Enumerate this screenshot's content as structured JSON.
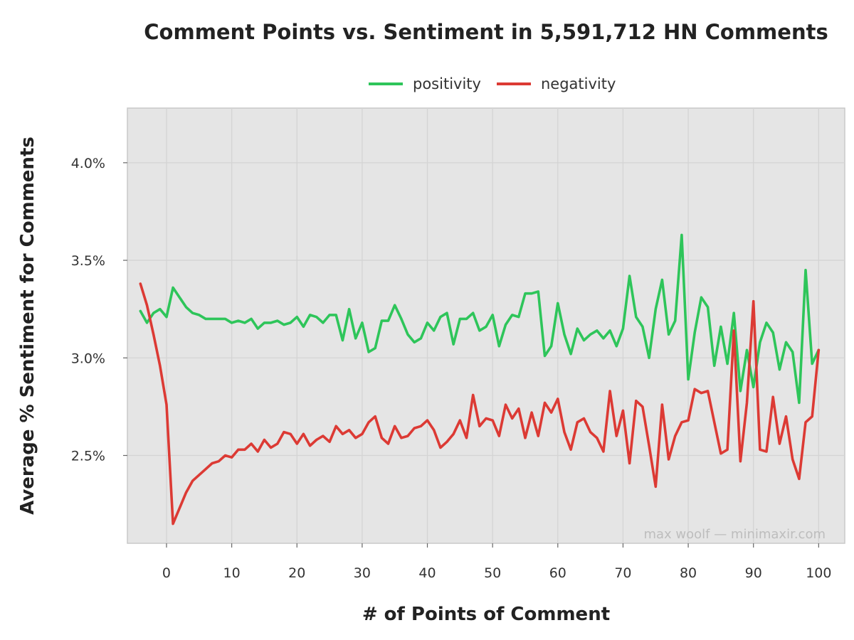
{
  "colors": {
    "positivity": "#2ec55a",
    "negativity": "#dc3a34",
    "panel_background": "#e5e5e5",
    "grid": "#d4d4d4"
  },
  "watermark": "max woolf — minimaxir.com",
  "chart_data": {
    "type": "line",
    "title": "Comment Points vs. Sentiment in 5,591,712 HN Comments",
    "xlabel": "# of Points of Comment",
    "ylabel": "Average % Sentiment for Comments",
    "xlim": [
      -6,
      104
    ],
    "ylim": [
      2.05,
      4.28
    ],
    "x_ticks": [
      0,
      10,
      20,
      30,
      40,
      50,
      60,
      70,
      80,
      90,
      100
    ],
    "x_tick_labels": [
      "0",
      "10",
      "20",
      "30",
      "40",
      "50",
      "60",
      "70",
      "80",
      "90",
      "100"
    ],
    "y_ticks": [
      2.5,
      3.0,
      3.5,
      4.0
    ],
    "y_tick_labels": [
      "2.5%",
      "3.0%",
      "3.5%",
      "4.0%"
    ],
    "grid": true,
    "legend_position": "top",
    "x": [
      -4,
      -3,
      -2,
      -1,
      0,
      1,
      2,
      3,
      4,
      5,
      6,
      7,
      8,
      9,
      10,
      11,
      12,
      13,
      14,
      15,
      16,
      17,
      18,
      19,
      20,
      21,
      22,
      23,
      24,
      25,
      26,
      27,
      28,
      29,
      30,
      31,
      32,
      33,
      34,
      35,
      36,
      37,
      38,
      39,
      40,
      41,
      42,
      43,
      44,
      45,
      46,
      47,
      48,
      49,
      50,
      51,
      52,
      53,
      54,
      55,
      56,
      57,
      58,
      59,
      60,
      61,
      62,
      63,
      64,
      65,
      66,
      67,
      68,
      69,
      70,
      71,
      72,
      73,
      74,
      75,
      76,
      77,
      78,
      79,
      80,
      81,
      82,
      83,
      84,
      85,
      86,
      87,
      88,
      89,
      90,
      91,
      92,
      93,
      94,
      95,
      96,
      97,
      98,
      99,
      100
    ],
    "series": [
      {
        "name": "positivity",
        "values": [
          3.24,
          3.18,
          3.23,
          3.25,
          3.21,
          3.36,
          3.31,
          3.26,
          3.23,
          3.22,
          3.2,
          3.2,
          3.2,
          3.2,
          3.18,
          3.19,
          3.18,
          3.2,
          3.15,
          3.18,
          3.18,
          3.19,
          3.17,
          3.18,
          3.21,
          3.16,
          3.22,
          3.21,
          3.18,
          3.22,
          3.22,
          3.09,
          3.25,
          3.1,
          3.18,
          3.03,
          3.05,
          3.19,
          3.19,
          3.27,
          3.2,
          3.12,
          3.08,
          3.1,
          3.18,
          3.14,
          3.21,
          3.23,
          3.07,
          3.2,
          3.2,
          3.23,
          3.14,
          3.16,
          3.22,
          3.06,
          3.17,
          3.22,
          3.21,
          3.33,
          3.33,
          3.34,
          3.01,
          3.06,
          3.28,
          3.12,
          3.02,
          3.15,
          3.09,
          3.12,
          3.14,
          3.1,
          3.14,
          3.06,
          3.15,
          3.42,
          3.21,
          3.16,
          3.0,
          3.25,
          3.4,
          3.12,
          3.19,
          3.63,
          2.89,
          3.13,
          3.31,
          3.26,
          2.96,
          3.16,
          2.97,
          3.23,
          2.83,
          3.04,
          2.85,
          3.08,
          3.18,
          3.13,
          2.94,
          3.08,
          3.03,
          2.77,
          3.45,
          2.97,
          3.04
        ]
      },
      {
        "name": "negativity",
        "values": [
          3.38,
          3.27,
          3.12,
          2.96,
          2.76,
          2.15,
          2.23,
          2.31,
          2.37,
          2.4,
          2.43,
          2.46,
          2.47,
          2.5,
          2.49,
          2.53,
          2.53,
          2.56,
          2.52,
          2.58,
          2.54,
          2.56,
          2.62,
          2.61,
          2.56,
          2.61,
          2.55,
          2.58,
          2.6,
          2.57,
          2.65,
          2.61,
          2.63,
          2.59,
          2.61,
          2.67,
          2.7,
          2.59,
          2.56,
          2.65,
          2.59,
          2.6,
          2.64,
          2.65,
          2.68,
          2.63,
          2.54,
          2.57,
          2.61,
          2.68,
          2.59,
          2.81,
          2.65,
          2.69,
          2.68,
          2.6,
          2.76,
          2.69,
          2.74,
          2.59,
          2.72,
          2.6,
          2.77,
          2.72,
          2.79,
          2.62,
          2.53,
          2.67,
          2.69,
          2.62,
          2.59,
          2.52,
          2.83,
          2.6,
          2.73,
          2.46,
          2.78,
          2.75,
          2.55,
          2.34,
          2.76,
          2.48,
          2.6,
          2.67,
          2.68,
          2.84,
          2.82,
          2.83,
          2.67,
          2.51,
          2.53,
          3.14,
          2.47,
          2.77,
          3.29,
          2.53,
          2.52,
          2.8,
          2.56,
          2.7,
          2.48,
          2.38,
          2.67,
          2.7,
          3.04
        ]
      }
    ]
  }
}
